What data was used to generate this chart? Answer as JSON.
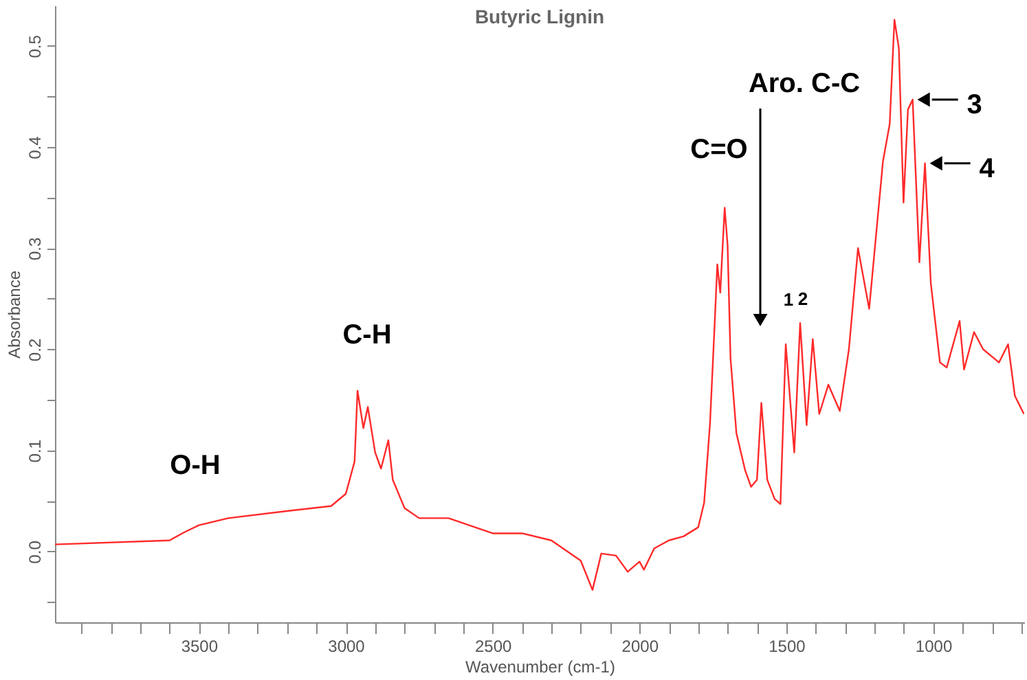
{
  "chart_data": {
    "type": "line",
    "title": "Butyric Lignin",
    "xlabel": "Wavenumber (cm-1)",
    "ylabel": "Absorbance",
    "x": [
      3990,
      3600,
      3550,
      3500,
      3400,
      3200,
      3050,
      3000,
      2970,
      2960,
      2940,
      2925,
      2900,
      2880,
      2855,
      2840,
      2800,
      2750,
      2650,
      2500,
      2400,
      2300,
      2200,
      2160,
      2130,
      2080,
      2040,
      2000,
      1985,
      1950,
      1900,
      1850,
      1800,
      1780,
      1760,
      1745,
      1735,
      1725,
      1710,
      1700,
      1690,
      1670,
      1640,
      1620,
      1600,
      1585,
      1565,
      1540,
      1520,
      1502,
      1473,
      1453,
      1431,
      1410,
      1388,
      1357,
      1318,
      1287,
      1256,
      1218,
      1171,
      1148,
      1132,
      1117,
      1101,
      1086,
      1070,
      1047,
      1028,
      1008,
      977,
      954,
      910,
      895,
      861,
      830,
      776,
      745,
      722,
      691
    ],
    "series": [
      {
        "color": "#ff2a2a",
        "values": [
          0.007,
          0.011,
          0.019,
          0.026,
          0.033,
          0.04,
          0.045,
          0.057,
          0.089,
          0.159,
          0.122,
          0.143,
          0.098,
          0.082,
          0.11,
          0.071,
          0.043,
          0.033,
          0.033,
          0.018,
          0.018,
          0.011,
          -0.009,
          -0.038,
          -0.002,
          -0.004,
          -0.02,
          -0.01,
          -0.018,
          0.003,
          0.011,
          0.015,
          0.024,
          0.048,
          0.126,
          0.219,
          0.284,
          0.256,
          0.34,
          0.303,
          0.191,
          0.117,
          0.08,
          0.064,
          0.071,
          0.147,
          0.071,
          0.052,
          0.047,
          0.205,
          0.098,
          0.226,
          0.125,
          0.21,
          0.136,
          0.165,
          0.139,
          0.2,
          0.3,
          0.24,
          0.386,
          0.423,
          0.526,
          0.498,
          0.345,
          0.437,
          0.447,
          0.286,
          0.384,
          0.265,
          0.187,
          0.182,
          0.228,
          0.18,
          0.217,
          0.2,
          0.187,
          0.205,
          0.154,
          0.136
        ]
      }
    ],
    "xlim": [
      3990,
      690
    ],
    "ylim": [
      -0.07,
      0.54
    ],
    "xticks": [
      {
        "value": 3900,
        "label": null
      },
      {
        "value": 3800,
        "label": null
      },
      {
        "value": 3700,
        "label": null
      },
      {
        "value": 3600,
        "label": null
      },
      3500,
      {
        "value": 3400,
        "label": null
      },
      {
        "value": 3300,
        "label": null
      },
      {
        "value": 3200,
        "label": null
      },
      {
        "value": 3100,
        "label": null
      },
      3000,
      {
        "value": 2900,
        "label": null
      },
      {
        "value": 2800,
        "label": null
      },
      {
        "value": 2700,
        "label": null
      },
      {
        "value": 2600,
        "label": null
      },
      2500,
      {
        "value": 2400,
        "label": null
      },
      {
        "value": 2300,
        "label": null
      },
      {
        "value": 2200,
        "label": null
      },
      {
        "value": 2100,
        "label": null
      },
      2000,
      {
        "value": 1900,
        "label": null
      },
      {
        "value": 1800,
        "label": null
      },
      {
        "value": 1700,
        "label": null
      },
      {
        "value": 1600,
        "label": null
      },
      1500,
      {
        "value": 1400,
        "label": null
      },
      {
        "value": 1300,
        "label": null
      },
      {
        "value": 1200,
        "label": null
      },
      {
        "value": 1100,
        "label": null
      },
      1000,
      {
        "value": 900,
        "label": null
      },
      {
        "value": 800,
        "label": null
      },
      {
        "value": 700,
        "label": null
      }
    ],
    "yticks": [
      {
        "value": -0.05,
        "label": null
      },
      {
        "value": 0,
        "label": "0.0"
      },
      {
        "value": 0.05,
        "label": null
      },
      0.1,
      {
        "value": 0.15,
        "label": null
      },
      0.2,
      {
        "value": 0.25,
        "label": null
      },
      0.3,
      {
        "value": 0.35,
        "label": null
      },
      0.4,
      {
        "value": 0.45,
        "label": null
      },
      0.5
    ],
    "grid": false,
    "annotations": [
      "O-H",
      "C-H",
      "C=O",
      "Aro. C-C",
      {
        "text": "1",
        "x": 1502,
        "y": 0.205
      },
      {
        "text": "2",
        "x": 1453,
        "y": 0.226
      },
      {
        "text": "3",
        "x": 1070,
        "y": 0.447
      },
      {
        "text": "4",
        "x": 1028,
        "y": 0.384
      }
    ]
  }
}
